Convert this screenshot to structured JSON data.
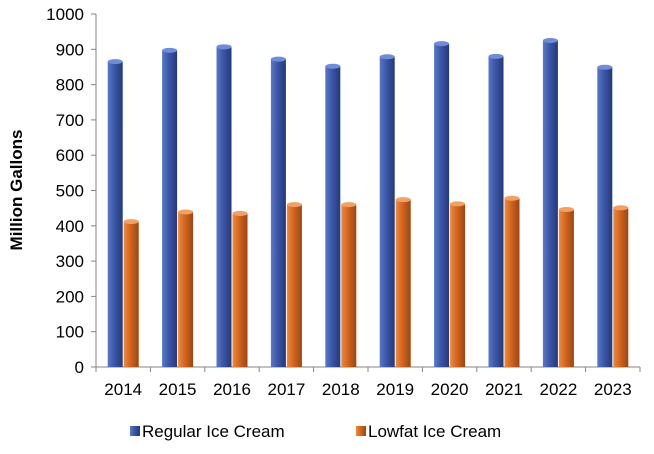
{
  "chart_data": {
    "type": "bar",
    "categories": [
      "2014",
      "2015",
      "2016",
      "2017",
      "2018",
      "2019",
      "2020",
      "2021",
      "2022",
      "2023"
    ],
    "series": [
      {
        "name": "Regular Ice Cream",
        "color": "#3a56a6",
        "values": [
          865,
          897,
          907,
          872,
          852,
          879,
          916,
          880,
          925,
          849
        ]
      },
      {
        "name": "Lowfat Ice Cream",
        "color": "#d0651f",
        "values": [
          412,
          439,
          435,
          460,
          460,
          474,
          462,
          478,
          446,
          451
        ]
      }
    ],
    "title": "",
    "xlabel": "",
    "ylabel": "Million Gallons",
    "ylim": [
      0,
      1000
    ],
    "yticks": [
      0,
      100,
      200,
      300,
      400,
      500,
      600,
      700,
      800,
      900,
      1000
    ],
    "grid": false,
    "legend_position": "bottom"
  }
}
